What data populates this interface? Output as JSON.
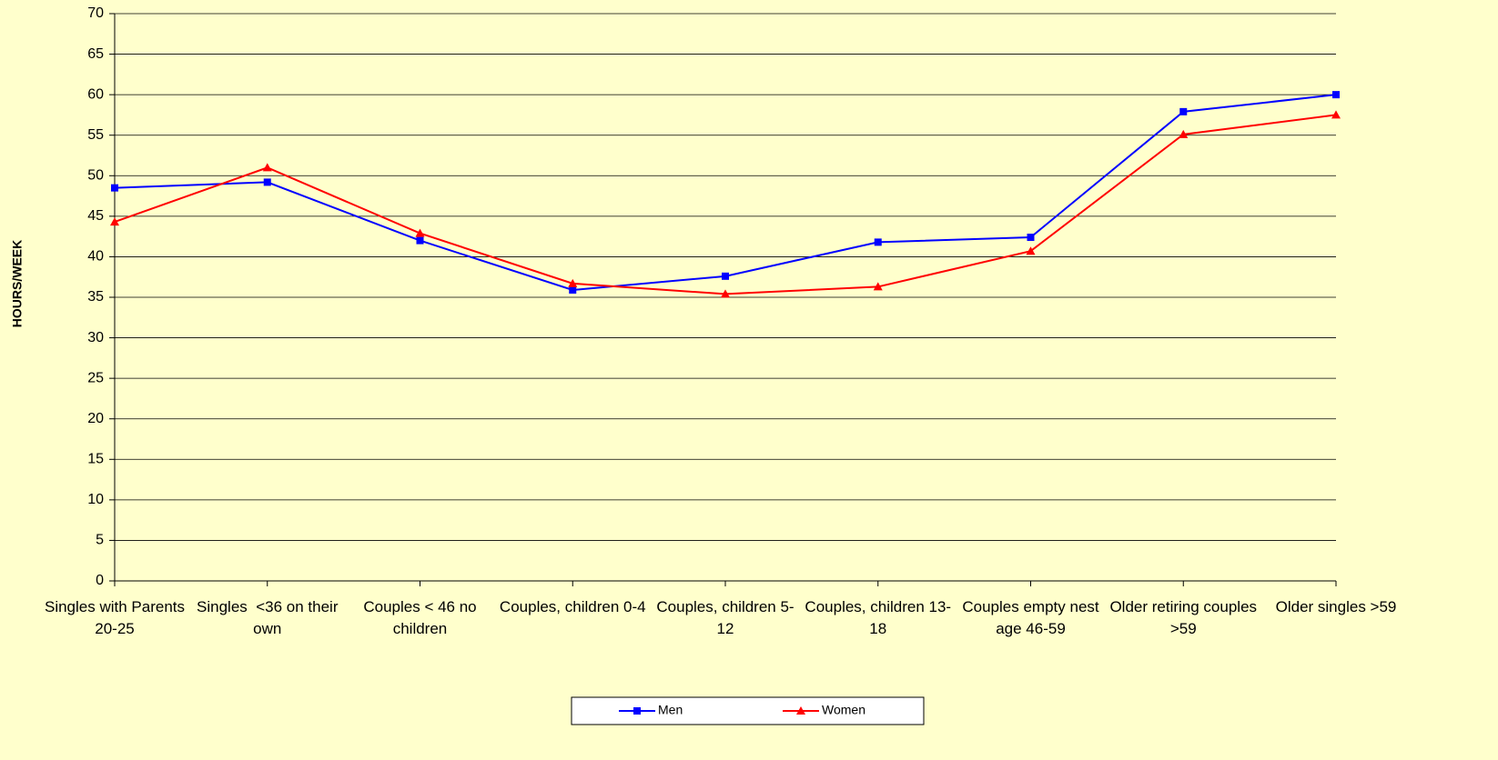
{
  "chart_data": {
    "type": "line",
    "y_label": "HOURS/WEEK",
    "categories": [
      "Singles with Parents 20-25",
      "Singles  <36 on their own",
      "Couples < 46 no children",
      "Couples, children 0-4",
      "Couples, children 5-12",
      "Couples, children 13-18",
      "Couples empty nest age 46-59",
      "Older retiring couples >59",
      "Older singles >59"
    ],
    "series": [
      {
        "name": "Men",
        "color": "#0000ff",
        "marker": "square",
        "values": [
          48.5,
          49.2,
          42.0,
          35.9,
          37.6,
          41.8,
          42.4,
          57.9,
          60.0
        ]
      },
      {
        "name": "Women",
        "color": "#ff0000",
        "marker": "triangle",
        "values": [
          44.3,
          51.0,
          42.9,
          36.7,
          35.4,
          36.3,
          40.7,
          55.1,
          57.5
        ]
      }
    ],
    "ylim": [
      0,
      70
    ],
    "yticks": [
      0,
      5,
      10,
      15,
      20,
      25,
      30,
      35,
      40,
      45,
      50,
      55,
      60,
      65,
      70
    ],
    "grid": true,
    "legend": "bottom"
  }
}
